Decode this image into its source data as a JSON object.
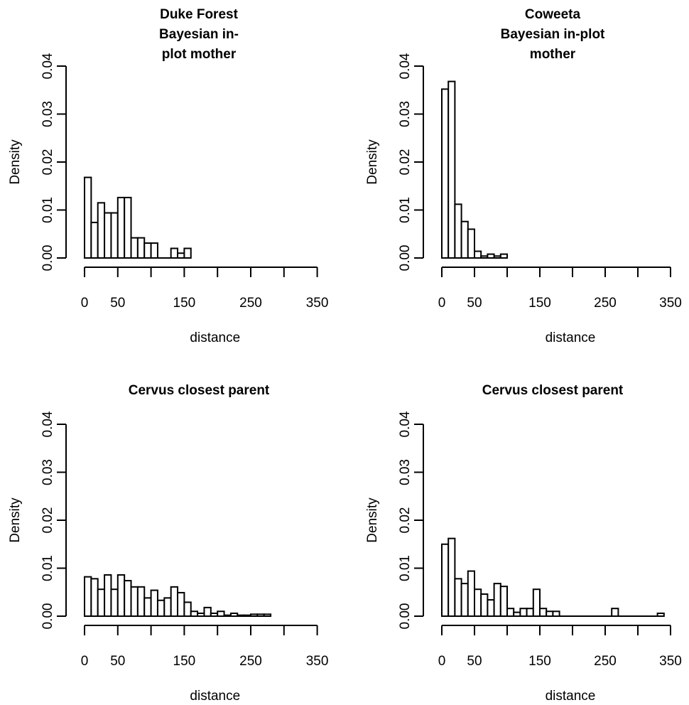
{
  "chart_data": [
    {
      "type": "bar",
      "title": [
        "Duke Forest",
        "Bayesian in-",
        "plot mother"
      ],
      "xlabel": "distance",
      "ylabel": "Density",
      "xlim": [
        0,
        350
      ],
      "ylim": [
        0,
        0.04
      ],
      "x_ticks": [
        "0",
        "50",
        "150",
        "250",
        "350"
      ],
      "y_ticks": [
        "0.00",
        "0.01",
        "0.02",
        "0.03",
        "0.04"
      ],
      "bin_width": 10,
      "bin_starts": [
        0,
        10,
        20,
        30,
        40,
        50,
        60,
        70,
        80,
        90,
        100,
        110,
        120,
        130,
        140,
        150
      ],
      "values": [
        0.0168,
        0.0074,
        0.0115,
        0.0094,
        0.0094,
        0.0126,
        0.0126,
        0.0042,
        0.0042,
        0.0031,
        0.0031,
        0,
        0,
        0.002,
        0.001,
        0.002
      ]
    },
    {
      "type": "bar",
      "title": [
        "Coweeta",
        "Bayesian in-plot",
        "mother"
      ],
      "xlabel": "distance",
      "ylabel": "Density",
      "xlim": [
        0,
        350
      ],
      "ylim": [
        0,
        0.04
      ],
      "x_ticks": [
        "0",
        "50",
        "150",
        "250",
        "350"
      ],
      "y_ticks": [
        "0.00",
        "0.01",
        "0.02",
        "0.03",
        "0.04"
      ],
      "bin_width": 10,
      "bin_starts": [
        0,
        10,
        20,
        30,
        40,
        50,
        60,
        70,
        80,
        90
      ],
      "values": [
        0.0352,
        0.0368,
        0.0112,
        0.0076,
        0.006,
        0.0014,
        0.0004,
        0.0008,
        0.0004,
        0.0008
      ]
    },
    {
      "type": "bar",
      "title": [
        "Cervus closest parent"
      ],
      "xlabel": "distance",
      "ylabel": "Density",
      "xlim": [
        0,
        350
      ],
      "ylim": [
        0,
        0.04
      ],
      "x_ticks": [
        "0",
        "50",
        "150",
        "250",
        "350"
      ],
      "y_ticks": [
        "0.00",
        "0.01",
        "0.02",
        "0.03",
        "0.04"
      ],
      "bin_width": 10,
      "bin_starts": [
        0,
        10,
        20,
        30,
        40,
        50,
        60,
        70,
        80,
        90,
        100,
        110,
        120,
        130,
        140,
        150,
        160,
        170,
        180,
        190,
        200,
        210,
        220,
        230,
        240,
        250,
        260,
        270
      ],
      "values": [
        0.0082,
        0.0078,
        0.0056,
        0.0086,
        0.0056,
        0.0086,
        0.0074,
        0.0061,
        0.0061,
        0.0038,
        0.0054,
        0.0033,
        0.0038,
        0.0061,
        0.0049,
        0.0029,
        0.001,
        0.0006,
        0.0018,
        0.0006,
        0.001,
        0.0002,
        0.0006,
        0.0002,
        0.0002,
        0.0004,
        0.0004,
        0.0004
      ]
    },
    {
      "type": "bar",
      "title": [
        "Cervus closest parent"
      ],
      "xlabel": "distance",
      "ylabel": "Density",
      "xlim": [
        0,
        350
      ],
      "ylim": [
        0,
        0.04
      ],
      "x_ticks": [
        "0",
        "50",
        "150",
        "250",
        "350"
      ],
      "y_ticks": [
        "0.00",
        "0.01",
        "0.02",
        "0.03",
        "0.04"
      ],
      "bin_width": 10,
      "bin_starts": [
        0,
        10,
        20,
        30,
        40,
        50,
        60,
        70,
        80,
        90,
        100,
        110,
        120,
        130,
        140,
        150,
        160,
        170,
        180,
        190,
        200,
        210,
        220,
        230,
        240,
        250,
        260,
        270,
        280,
        290,
        300,
        310,
        320,
        330
      ],
      "values": [
        0.015,
        0.0162,
        0.0078,
        0.0068,
        0.0094,
        0.0056,
        0.0046,
        0.0034,
        0.0068,
        0.0062,
        0.0016,
        0.0008,
        0.0016,
        0.0016,
        0.0056,
        0.0016,
        0.001,
        0.001,
        0,
        0,
        0,
        0,
        0,
        0,
        0,
        0,
        0.0016,
        0,
        0,
        0,
        0,
        0,
        0,
        0.0006
      ]
    }
  ]
}
